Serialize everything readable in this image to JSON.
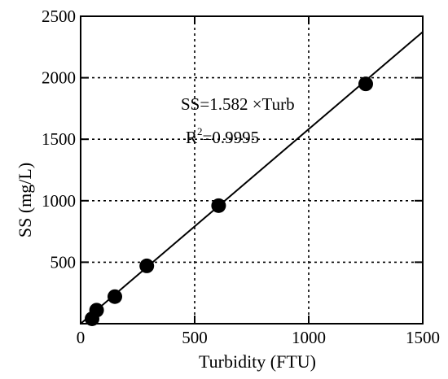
{
  "chart_data": {
    "type": "scatter",
    "xlabel": "Turbidity (FTU)",
    "ylabel": "SS (mg/L)",
    "xlim": [
      0,
      1500
    ],
    "ylim": [
      0,
      2500
    ],
    "x_ticks": [
      0,
      500,
      1000,
      1500
    ],
    "y_ticks": [
      500,
      1000,
      1500,
      2000,
      2500
    ],
    "x_tick_labels": [
      "0",
      "500",
      "1000",
      "1500"
    ],
    "y_tick_labels": [
      "500",
      "1000",
      "1500",
      "2000",
      "2500"
    ],
    "grid": true,
    "grid_style": "dotted",
    "points": [
      {
        "x": 50,
        "y": 40
      },
      {
        "x": 70,
        "y": 110
      },
      {
        "x": 150,
        "y": 220
      },
      {
        "x": 290,
        "y": 470
      },
      {
        "x": 605,
        "y": 960
      },
      {
        "x": 1250,
        "y": 1950
      }
    ],
    "fit_line": {
      "slope": 1.582,
      "intercept": 0,
      "x_range": [
        0,
        1500
      ]
    },
    "annotations": {
      "equation": "SS=1.582 ×Turb",
      "r2_prefix": "R",
      "r2_sup": "2",
      "r2_value": "=0.9995"
    },
    "colors": {
      "points": "#000000",
      "line": "#000000",
      "grid": "#000000",
      "axes": "#000000"
    }
  }
}
